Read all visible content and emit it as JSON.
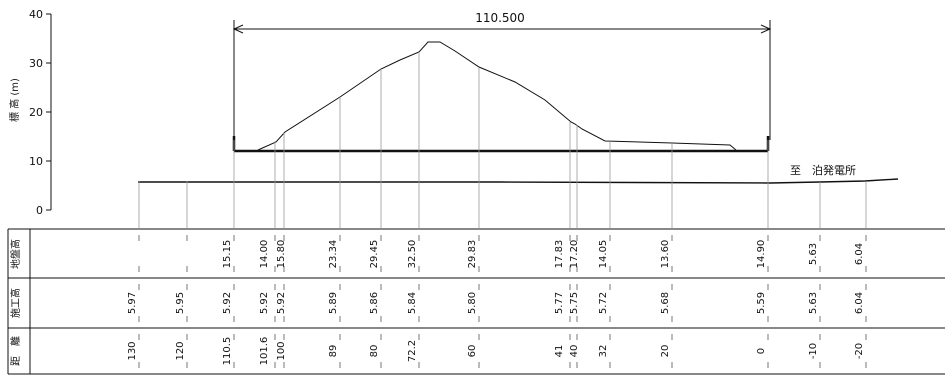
{
  "y_axis": {
    "label": "標 高 (m)",
    "ticks": [
      "0",
      "10",
      "20",
      "30",
      "40"
    ]
  },
  "dimension": {
    "label": "110.500"
  },
  "note": "至　泊発電所",
  "table": {
    "rows": [
      {
        "label": "地盤高"
      },
      {
        "label": "施工高"
      },
      {
        "label": "距　離"
      }
    ]
  },
  "stations": [
    {
      "ground": "",
      "construction": "5.97",
      "distance": "130"
    },
    {
      "ground": "",
      "construction": "5.95",
      "distance": "120"
    },
    {
      "ground": "15.15",
      "construction": "5.92",
      "distance": "110.5"
    },
    {
      "ground": "14.00",
      "construction": "5.92",
      "distance": "101.6"
    },
    {
      "ground": "15.80",
      "construction": "5.92",
      "distance": "100"
    },
    {
      "ground": "23.34",
      "construction": "5.89",
      "distance": "89"
    },
    {
      "ground": "29.45",
      "construction": "5.86",
      "distance": "80"
    },
    {
      "ground": "32.50",
      "construction": "5.84",
      "distance": "72.2"
    },
    {
      "ground": "29.83",
      "construction": "5.80",
      "distance": "60"
    },
    {
      "ground": "17.83",
      "construction": "5.77",
      "distance": "41"
    },
    {
      "ground": "17.20",
      "construction": "5.75",
      "distance": "40"
    },
    {
      "ground": "14.05",
      "construction": "5.72",
      "distance": "32"
    },
    {
      "ground": "13.60",
      "construction": "5.68",
      "distance": "20"
    },
    {
      "ground": "14.90",
      "construction": "5.59",
      "distance": "0"
    },
    {
      "ground": "5.63",
      "construction": "5.63",
      "distance": "-10"
    },
    {
      "ground": "6.04",
      "construction": "6.04",
      "distance": "-20"
    }
  ]
}
